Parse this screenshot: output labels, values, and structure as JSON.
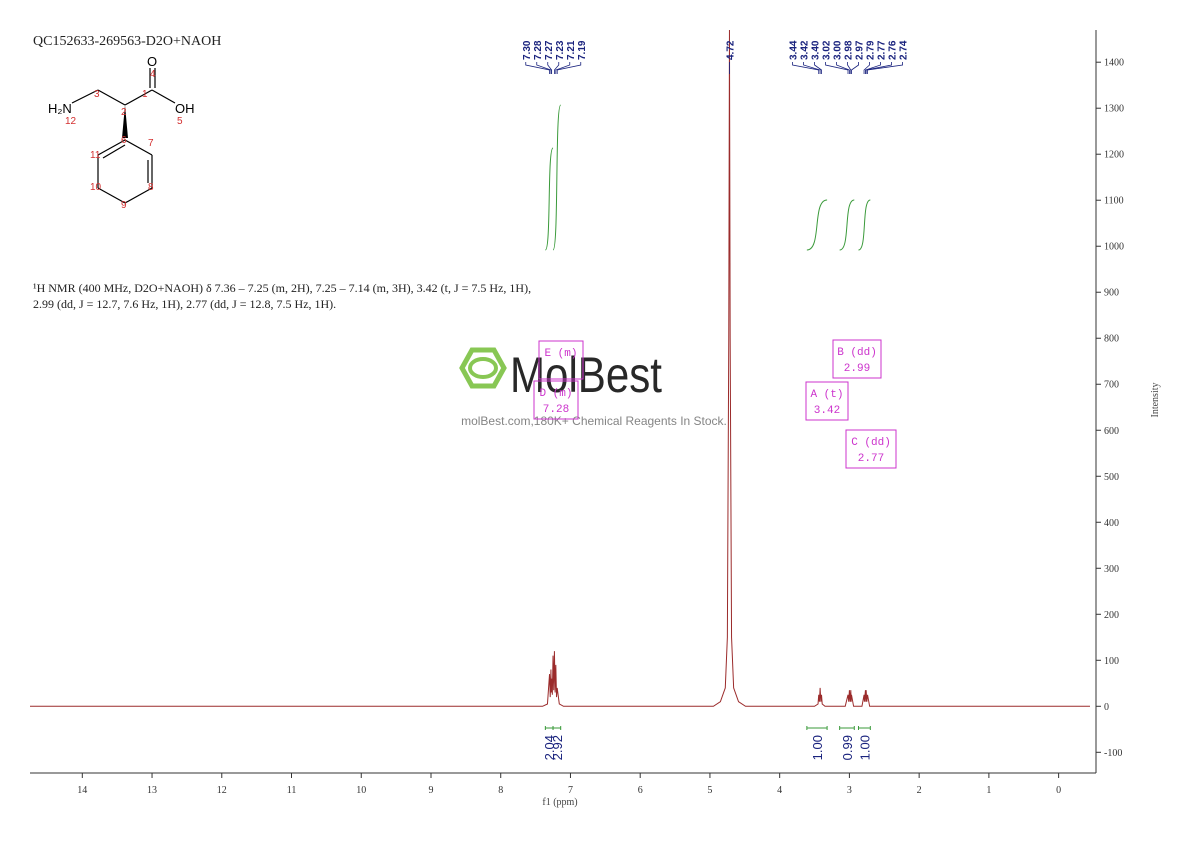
{
  "chart_data": {
    "type": "nmr",
    "title": "QC152633-269563-D2O+NAOH",
    "description": [
      "¹H NMR (400 MHz, D2O+NAOH) δ 7.36 – 7.25 (m, 2H), 7.25 – 7.14 (m, 3H), 3.42 (t, J = 7.5 Hz, 1H),",
      "2.99 (dd, J = 12.7, 7.6 Hz, 1H), 2.77 (dd, J = 12.8, 7.5 Hz, 1H)."
    ],
    "xlabel": "f1 (ppm)",
    "ylabel": "Intensity",
    "xlim": [
      14.75,
      -0.45
    ],
    "ylim": [
      -145,
      1470
    ],
    "xticks": [
      14,
      13,
      12,
      11,
      10,
      9,
      8,
      7,
      6,
      5,
      4,
      3,
      2,
      1,
      0
    ],
    "yticks": [
      -100,
      0,
      100,
      200,
      300,
      400,
      500,
      600,
      700,
      800,
      900,
      1000,
      1100,
      1200,
      1300,
      1400
    ],
    "x": [
      14.75,
      7.4,
      7.33,
      7.3,
      7.29,
      7.28,
      7.275,
      7.27,
      7.26,
      7.25,
      7.24,
      7.23,
      7.22,
      7.21,
      7.2,
      7.19,
      7.16,
      7.1,
      4.95,
      4.85,
      4.78,
      4.75,
      4.73,
      4.72,
      4.71,
      4.69,
      4.66,
      4.59,
      4.49,
      3.5,
      3.45,
      3.44,
      3.43,
      3.42,
      3.41,
      3.4,
      3.39,
      3.35,
      3.06,
      3.02,
      3.01,
      3.0,
      2.99,
      2.98,
      2.975,
      2.97,
      2.94,
      2.82,
      2.79,
      2.785,
      2.77,
      2.765,
      2.76,
      2.75,
      2.74,
      2.71,
      -0.45
    ],
    "series": [
      {
        "name": "spectrum",
        "color": "#9b2b2b",
        "values": [
          0,
          0,
          5,
          70,
          20,
          80,
          30,
          60,
          25,
          110,
          35,
          120,
          30,
          90,
          20,
          40,
          5,
          0,
          0,
          10,
          40,
          150,
          800,
          1470,
          800,
          150,
          40,
          10,
          0,
          0,
          5,
          25,
          10,
          40,
          10,
          25,
          5,
          0,
          0,
          25,
          10,
          35,
          10,
          35,
          10,
          25,
          0,
          0,
          25,
          10,
          35,
          10,
          35,
          10,
          25,
          0,
          0
        ]
      }
    ],
    "peak_labels": [
      {
        "value": 7.3,
        "label": "7.30"
      },
      {
        "value": 7.28,
        "label": "7.28"
      },
      {
        "value": 7.27,
        "label": "7.27"
      },
      {
        "value": 7.23,
        "label": "7.23"
      },
      {
        "value": 7.21,
        "label": "7.21"
      },
      {
        "value": 7.19,
        "label": "7.19"
      },
      {
        "value": 4.72,
        "label": "4.72"
      },
      {
        "value": 3.44,
        "label": "3.44"
      },
      {
        "value": 3.42,
        "label": "3.42"
      },
      {
        "value": 3.4,
        "label": "3.40"
      },
      {
        "value": 3.02,
        "label": "3.02"
      },
      {
        "value": 3.0,
        "label": "3.00"
      },
      {
        "value": 2.98,
        "label": "2.98"
      },
      {
        "value": 2.97,
        "label": "2.97"
      },
      {
        "value": 2.79,
        "label": "2.79"
      },
      {
        "value": 2.77,
        "label": "2.77"
      },
      {
        "value": 2.76,
        "label": "2.76"
      },
      {
        "value": 2.74,
        "label": "2.74"
      }
    ],
    "integrals": [
      {
        "from": 7.36,
        "to": 7.25,
        "value": 2.04,
        "label": "2.04"
      },
      {
        "from": 7.25,
        "to": 7.14,
        "value": 2.92,
        "label": "2.92"
      },
      {
        "from": 3.61,
        "to": 3.32,
        "value": 1.0,
        "label": "1.00"
      },
      {
        "from": 3.14,
        "to": 2.93,
        "value": 0.99,
        "label": "0.99"
      },
      {
        "from": 2.87,
        "to": 2.7,
        "value": 1.0,
        "label": "1.00"
      }
    ],
    "color": "#9b2b2b",
    "integral_color": "#3a9a3a",
    "peak_label_color": "#1a237e",
    "multiplet_color": "#cc33cc",
    "multiplets": [
      {
        "name": "E (m)"
      },
      {
        "name": "D (m)",
        "shift": "7.28"
      },
      {
        "name": "A (t)",
        "shift": "3.42"
      },
      {
        "name": "B (dd)",
        "shift": "2.99"
      },
      {
        "name": "C (dd)",
        "shift": "2.77"
      }
    ]
  },
  "structure": {
    "atoms": [
      "H₂N",
      "O",
      "OH"
    ],
    "numbers": [
      "1",
      "2",
      "3",
      "4",
      "5",
      "6",
      "7",
      "8",
      "9",
      "10",
      "11",
      "12"
    ]
  },
  "watermark": {
    "brand": "MolBest",
    "tagline": "molBest.com,180K+ Chemical Reagents In Stock."
  }
}
